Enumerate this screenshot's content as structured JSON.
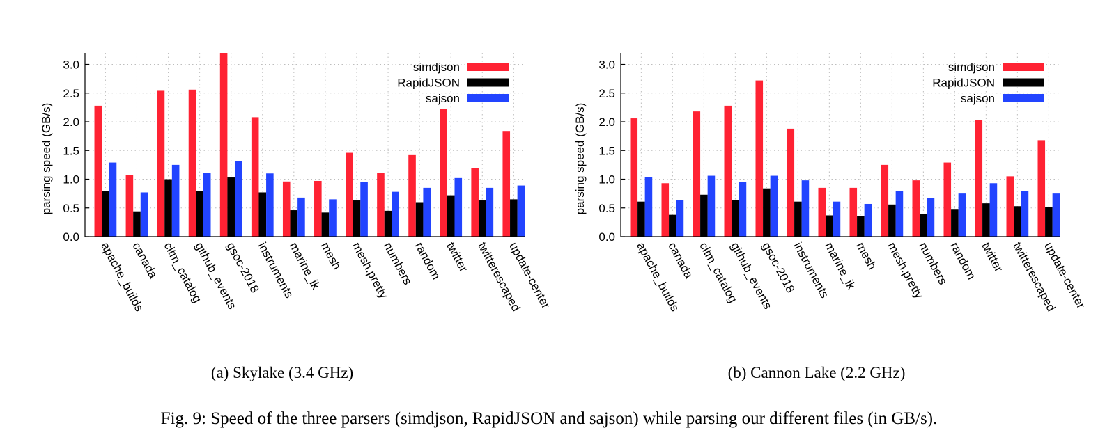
{
  "figure_caption": "Fig. 9: Speed of the three parsers (simdjson, RapidJSON and sajson) while parsing our different files (in GB/s).",
  "chart_data": [
    {
      "type": "bar",
      "caption": "(a) Skylake (3.4 GHz)",
      "ylabel": "parsing speed (GB/s)",
      "ylim": [
        0,
        3.2
      ],
      "yticks": [
        "0.0",
        "0.5",
        "1.0",
        "1.5",
        "2.0",
        "2.5",
        "3.0"
      ],
      "grid": true,
      "legend_position": "top-right",
      "categories": [
        "apache_builds",
        "canada",
        "citm_catalog",
        "github_events",
        "gsoc-2018",
        "instruments",
        "marine_ik",
        "mesh",
        "mesh.pretty",
        "numbers",
        "random",
        "twitter",
        "twitterescaped",
        "update-center"
      ],
      "series": [
        {
          "name": "simdjson",
          "color": "#ff2233",
          "values": [
            2.28,
            1.07,
            2.54,
            2.56,
            3.2,
            2.08,
            0.96,
            0.97,
            1.46,
            1.11,
            1.42,
            2.22,
            1.2,
            1.84
          ]
        },
        {
          "name": "RapidJSON",
          "color": "#000000",
          "values": [
            0.8,
            0.44,
            1.0,
            0.8,
            1.03,
            0.77,
            0.46,
            0.42,
            0.63,
            0.45,
            0.6,
            0.72,
            0.63,
            0.65
          ]
        },
        {
          "name": "sajson",
          "color": "#2244ff",
          "values": [
            1.29,
            0.77,
            1.25,
            1.11,
            1.31,
            1.1,
            0.68,
            0.65,
            0.95,
            0.78,
            0.85,
            1.02,
            0.85,
            0.89
          ]
        }
      ]
    },
    {
      "type": "bar",
      "caption": "(b) Cannon Lake (2.2 GHz)",
      "ylabel": "parsing speed (GB/s)",
      "ylim": [
        0,
        3.2
      ],
      "yticks": [
        "0.0",
        "0.5",
        "1.0",
        "1.5",
        "2.0",
        "2.5",
        "3.0"
      ],
      "grid": true,
      "legend_position": "top-right",
      "categories": [
        "apache_builds",
        "canada",
        "citm_catalog",
        "github_events",
        "gsoc-2018",
        "instruments",
        "marine_ik",
        "mesh",
        "mesh.pretty",
        "numbers",
        "random",
        "twitter",
        "twitterescaped",
        "update-center"
      ],
      "series": [
        {
          "name": "simdjson",
          "color": "#ff2233",
          "values": [
            2.06,
            0.93,
            2.18,
            2.28,
            2.72,
            1.88,
            0.85,
            0.85,
            1.25,
            0.98,
            1.29,
            2.03,
            1.05,
            1.68
          ]
        },
        {
          "name": "RapidJSON",
          "color": "#000000",
          "values": [
            0.61,
            0.38,
            0.73,
            0.64,
            0.84,
            0.61,
            0.37,
            0.36,
            0.56,
            0.39,
            0.47,
            0.58,
            0.53,
            0.52
          ]
        },
        {
          "name": "sajson",
          "color": "#2244ff",
          "values": [
            1.04,
            0.64,
            1.06,
            0.95,
            1.06,
            0.98,
            0.61,
            0.57,
            0.79,
            0.67,
            0.75,
            0.93,
            0.79,
            0.75
          ]
        }
      ]
    }
  ]
}
